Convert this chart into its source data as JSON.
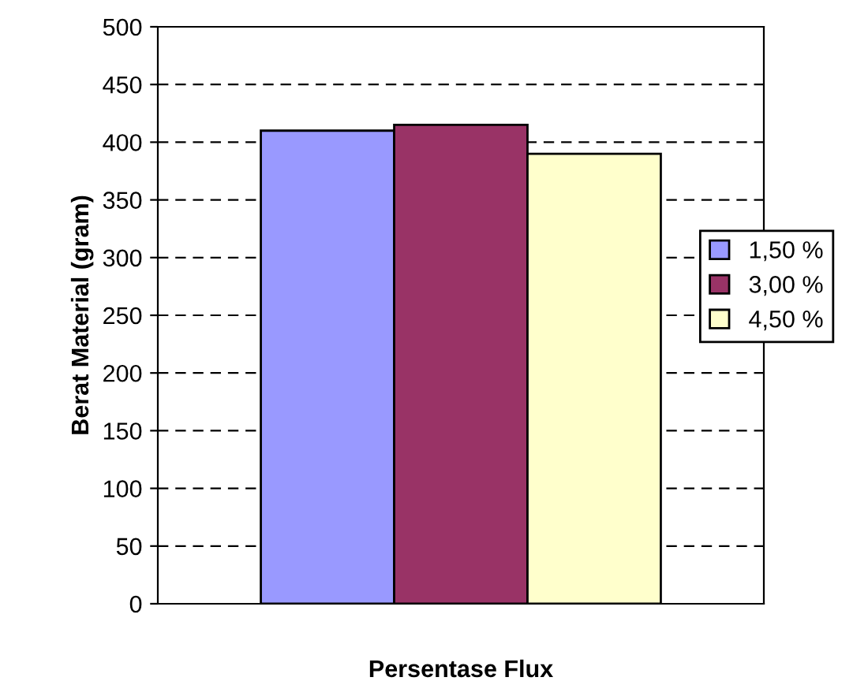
{
  "chart_data": {
    "type": "bar",
    "xlabel": "Persentase Flux",
    "ylabel": "Berat Material (gram)",
    "categories": [
      null
    ],
    "series": [
      {
        "name": "1,50 %",
        "color": "#9999ff",
        "values": [
          410
        ]
      },
      {
        "name": "3,00 %",
        "color": "#993366",
        "values": [
          415
        ]
      },
      {
        "name": "4,50 %",
        "color": "#ffffcc",
        "values": [
          390
        ]
      }
    ],
    "ylim": [
      0,
      500
    ],
    "yticks": [
      0,
      50,
      100,
      150,
      200,
      250,
      300,
      350,
      400,
      450,
      500
    ],
    "grid": "y",
    "line_style": "dashed",
    "legend": "right"
  }
}
